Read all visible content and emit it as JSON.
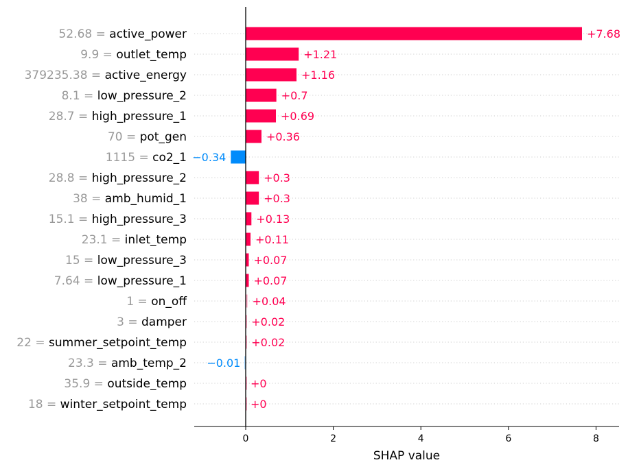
{
  "chart_data": {
    "type": "bar",
    "title": "",
    "xlabel": "SHAP value",
    "ylabel": "",
    "xlim": [
      -1.18,
      8.5
    ],
    "xticks": [
      0,
      2,
      4,
      6,
      8
    ],
    "grid": "horizontal dotted row guides",
    "colors": {
      "positive": "#ff0051",
      "negative": "#008bfb",
      "feature_value": "#999999",
      "feature_name": "#000000"
    },
    "features": [
      {
        "value_text": "52.68",
        "name": "active_power",
        "shap": 7.68,
        "label": "+7.68"
      },
      {
        "value_text": "9.9",
        "name": "outlet_temp",
        "shap": 1.21,
        "label": "+1.21"
      },
      {
        "value_text": "379235.38",
        "name": "active_energy",
        "shap": 1.16,
        "label": "+1.16"
      },
      {
        "value_text": "8.1",
        "name": "low_pressure_2",
        "shap": 0.7,
        "label": "+0.7"
      },
      {
        "value_text": "28.7",
        "name": "high_pressure_1",
        "shap": 0.69,
        "label": "+0.69"
      },
      {
        "value_text": "70",
        "name": "pot_gen",
        "shap": 0.36,
        "label": "+0.36"
      },
      {
        "value_text": "1115",
        "name": "co2_1",
        "shap": -0.34,
        "label": "−0.34"
      },
      {
        "value_text": "28.8",
        "name": "high_pressure_2",
        "shap": 0.3,
        "label": "+0.3"
      },
      {
        "value_text": "38",
        "name": "amb_humid_1",
        "shap": 0.3,
        "label": "+0.3"
      },
      {
        "value_text": "15.1",
        "name": "high_pressure_3",
        "shap": 0.13,
        "label": "+0.13"
      },
      {
        "value_text": "23.1",
        "name": "inlet_temp",
        "shap": 0.11,
        "label": "+0.11"
      },
      {
        "value_text": "15",
        "name": "low_pressure_3",
        "shap": 0.07,
        "label": "+0.07"
      },
      {
        "value_text": "7.64",
        "name": "low_pressure_1",
        "shap": 0.07,
        "label": "+0.07"
      },
      {
        "value_text": "1",
        "name": "on_off",
        "shap": 0.04,
        "label": "+0.04"
      },
      {
        "value_text": "3",
        "name": "damper",
        "shap": 0.02,
        "label": "+0.02"
      },
      {
        "value_text": "22",
        "name": "summer_setpoint_temp",
        "shap": 0.02,
        "label": "+0.02"
      },
      {
        "value_text": "23.3",
        "name": "amb_temp_2",
        "shap": -0.01,
        "label": "−0.01"
      },
      {
        "value_text": "35.9",
        "name": "outside_temp",
        "shap": 0.0,
        "label": "+0"
      },
      {
        "value_text": "18",
        "name": "winter_setpoint_temp",
        "shap": 0.0,
        "label": "+0"
      }
    ]
  }
}
